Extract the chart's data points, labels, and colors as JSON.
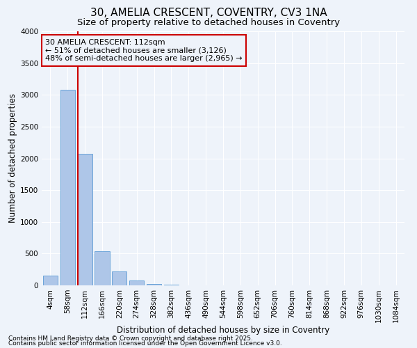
{
  "title_line1": "30, AMELIA CRESCENT, COVENTRY, CV3 1NA",
  "title_line2": "Size of property relative to detached houses in Coventry",
  "xlabel": "Distribution of detached houses by size in Coventry",
  "ylabel": "Number of detached properties",
  "footnote1": "Contains HM Land Registry data © Crown copyright and database right 2025.",
  "footnote2": "Contains public sector information licensed under the Open Government Licence v3.0.",
  "annotation_title": "30 AMELIA CRESCENT: 112sqm",
  "annotation_line1": "← 51% of detached houses are smaller (3,126)",
  "annotation_line2": "48% of semi-detached houses are larger (2,965) →",
  "categories": [
    "4sqm",
    "58sqm",
    "112sqm",
    "166sqm",
    "220sqm",
    "274sqm",
    "328sqm",
    "382sqm",
    "436sqm",
    "490sqm",
    "544sqm",
    "598sqm",
    "652sqm",
    "706sqm",
    "760sqm",
    "814sqm",
    "868sqm",
    "922sqm",
    "976sqm",
    "1030sqm",
    "1084sqm"
  ],
  "values": [
    150,
    3080,
    2070,
    540,
    215,
    75,
    25,
    10,
    5,
    2,
    1,
    0,
    0,
    0,
    0,
    0,
    0,
    0,
    0,
    0,
    0
  ],
  "bar_color": "#aec6e8",
  "bar_edge_color": "#5b9bd5",
  "vline_color": "#cc0000",
  "vline_x_index": 2,
  "ylim": [
    0,
    4000
  ],
  "yticks": [
    0,
    500,
    1000,
    1500,
    2000,
    2500,
    3000,
    3500,
    4000
  ],
  "bg_color": "#eef3fa",
  "grid_color": "#ffffff",
  "annotation_box_color": "#cc0000",
  "title_fontsize": 11,
  "subtitle_fontsize": 9.5,
  "axis_label_fontsize": 8.5,
  "tick_fontsize": 7.5,
  "annotation_fontsize": 8,
  "footnote_fontsize": 6.5
}
